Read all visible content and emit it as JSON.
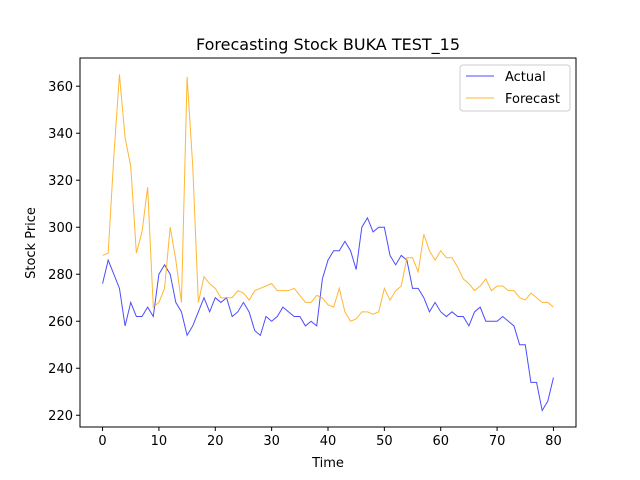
{
  "chart_data": {
    "type": "line",
    "title": "Forecasting Stock BUKA TEST_15",
    "xlabel": "Time",
    "ylabel": "Stock Price",
    "xlim": [
      -4,
      84
    ],
    "ylim": [
      215,
      372
    ],
    "x_ticks": [
      0,
      10,
      20,
      30,
      40,
      50,
      60,
      70,
      80
    ],
    "y_ticks": [
      220,
      240,
      260,
      280,
      300,
      320,
      340,
      360
    ],
    "grid": false,
    "legend_position": "upper right",
    "x": [
      0,
      1,
      2,
      3,
      4,
      5,
      6,
      7,
      8,
      9,
      10,
      11,
      12,
      13,
      14,
      15,
      16,
      17,
      18,
      19,
      20,
      21,
      22,
      23,
      24,
      25,
      26,
      27,
      28,
      29,
      30,
      31,
      32,
      33,
      34,
      35,
      36,
      37,
      38,
      39,
      40,
      41,
      42,
      43,
      44,
      45,
      46,
      47,
      48,
      49,
      50,
      51,
      52,
      53,
      54,
      55,
      56,
      57,
      58,
      59,
      60,
      61,
      62,
      63,
      64,
      65,
      66,
      67,
      68,
      69,
      70,
      71,
      72,
      73,
      74,
      75,
      76,
      77,
      78,
      79,
      80
    ],
    "series": [
      {
        "name": "Actual",
        "color": "#0000ff",
        "values": [
          276,
          286,
          280,
          274,
          258,
          268,
          262,
          262,
          266,
          262,
          280,
          284,
          280,
          268,
          264,
          254,
          258,
          264,
          270,
          264,
          270,
          268,
          270,
          262,
          264,
          268,
          264,
          256,
          254,
          262,
          260,
          262,
          266,
          264,
          262,
          262,
          258,
          260,
          258,
          278,
          286,
          290,
          290,
          294,
          290,
          282,
          300,
          304,
          298,
          300,
          300,
          288,
          284,
          288,
          286,
          274,
          274,
          270,
          264,
          268,
          264,
          262,
          264,
          262,
          262,
          258,
          264,
          266,
          260,
          260,
          260,
          262,
          260,
          258,
          250,
          250,
          234,
          234,
          222,
          226,
          236
        ]
      },
      {
        "name": "Forecast",
        "color": "#ffa500",
        "values": [
          288,
          289,
          330,
          365,
          338,
          326,
          289,
          298,
          317,
          266,
          268,
          274,
          300,
          286,
          268,
          364,
          326,
          268,
          279,
          276,
          274,
          270,
          270,
          270,
          273,
          272,
          269,
          273,
          274,
          275,
          276,
          273,
          273,
          273,
          274,
          271,
          268,
          268,
          271,
          270,
          267,
          266,
          274,
          264,
          260,
          261,
          264,
          264,
          263,
          264,
          274,
          269,
          273,
          275,
          287,
          287,
          281,
          297,
          290,
          286,
          290,
          287,
          287,
          283,
          278,
          276,
          273,
          275,
          278,
          273,
          275,
          275,
          273,
          273,
          270,
          269,
          272,
          270,
          268,
          268,
          266
        ]
      }
    ]
  }
}
